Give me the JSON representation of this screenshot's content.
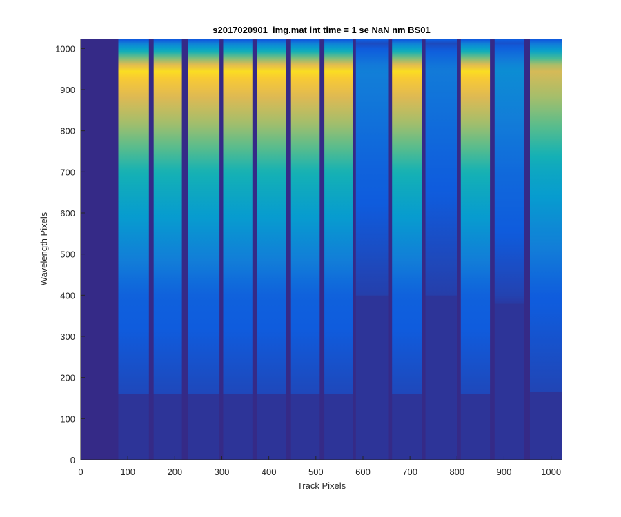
{
  "chart_data": {
    "type": "heatmap",
    "title": "s2017020901_img.mat int time = 1 se  NaN nm BS01",
    "xlabel": "Track Pixels",
    "ylabel": "Wavelength Pixels",
    "xlim": [
      0,
      1024
    ],
    "ylim": [
      0,
      1024
    ],
    "x_ticks": [
      0,
      100,
      200,
      300,
      400,
      500,
      600,
      700,
      800,
      900,
      1000
    ],
    "y_ticks": [
      0,
      100,
      200,
      300,
      400,
      500,
      600,
      700,
      800,
      900,
      1000
    ],
    "colormap": "parula",
    "background_value": 0.02,
    "tracks": [
      {
        "x_start": 80,
        "x_end": 145,
        "peak": 1.0,
        "y_start": 160
      },
      {
        "x_start": 155,
        "x_end": 215,
        "peak": 1.0,
        "y_start": 160
      },
      {
        "x_start": 228,
        "x_end": 295,
        "peak": 1.0,
        "y_start": 160
      },
      {
        "x_start": 303,
        "x_end": 365,
        "peak": 1.0,
        "y_start": 160
      },
      {
        "x_start": 375,
        "x_end": 437,
        "peak": 1.0,
        "y_start": 160
      },
      {
        "x_start": 447,
        "x_end": 508,
        "peak": 1.0,
        "y_start": 160
      },
      {
        "x_start": 518,
        "x_end": 578,
        "peak": 1.0,
        "y_start": 160
      },
      {
        "x_start": 585,
        "x_end": 655,
        "peak": 0.22,
        "y_start": 400
      },
      {
        "x_start": 662,
        "x_end": 725,
        "peak": 1.0,
        "y_start": 160
      },
      {
        "x_start": 733,
        "x_end": 800,
        "peak": 0.2,
        "y_start": 400
      },
      {
        "x_start": 808,
        "x_end": 870,
        "peak": 1.0,
        "y_start": 160
      },
      {
        "x_start": 880,
        "x_end": 943,
        "peak": 0.28,
        "y_start": 380
      },
      {
        "x_start": 955,
        "x_end": 1024,
        "peak": 0.85,
        "y_start": 165
      }
    ]
  }
}
